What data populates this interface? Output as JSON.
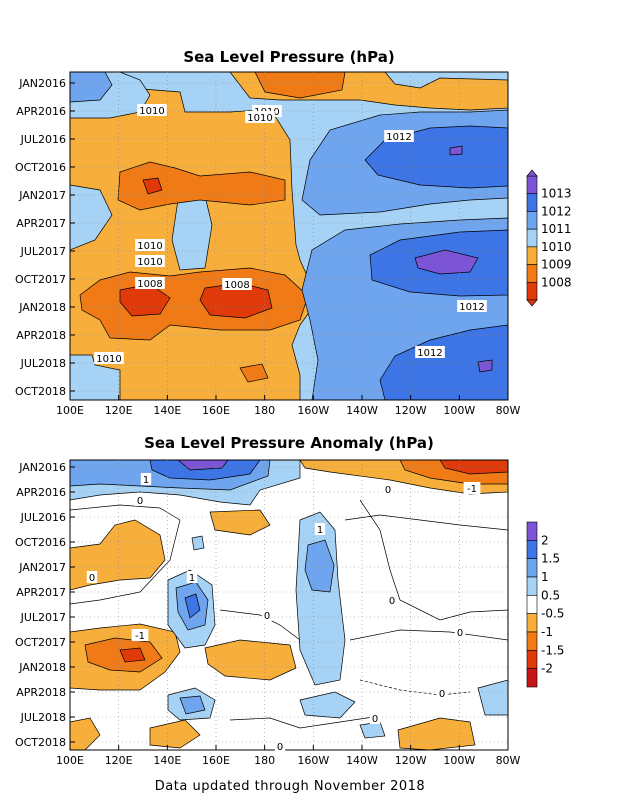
{
  "chart_data": [
    {
      "type": "heatmap",
      "title": "Sea Level Pressure (hPa)",
      "x_ticks": [
        "100E",
        "120E",
        "140E",
        "160E",
        "180",
        "160W",
        "140W",
        "120W",
        "100W",
        "80W"
      ],
      "y_ticks": [
        "JAN2016",
        "APR2016",
        "JUL2016",
        "OCT2016",
        "JAN2017",
        "APR2017",
        "JUL2017",
        "OCT2017",
        "JAN2018",
        "APR2018",
        "JUL2018",
        "OCT2018"
      ],
      "colorbar": {
        "labels": [
          "1013",
          "1012",
          "1011",
          "1010",
          "1009",
          "1008"
        ],
        "colors": [
          "#7b55d6",
          "#3d74e6",
          "#6fa5ee",
          "#a6d2f5",
          "#f7ae3a",
          "#f07b16",
          "#e03a0a"
        ]
      },
      "contour_labels": [
        "1010",
        "1010",
        "1010",
        "1012",
        "1010",
        "1010",
        "1008",
        "1008",
        "1012",
        "1010",
        "1012"
      ],
      "grid": true
    },
    {
      "type": "heatmap",
      "title": "Sea Level Pressure Anomaly (hPa)",
      "x_ticks": [
        "100E",
        "120E",
        "140E",
        "160E",
        "180",
        "160W",
        "140W",
        "120W",
        "100W",
        "80W"
      ],
      "y_ticks": [
        "JAN2016",
        "APR2016",
        "JUL2016",
        "OCT2016",
        "JAN2017",
        "APR2017",
        "JUL2017",
        "OCT2017",
        "JAN2018",
        "APR2018",
        "JUL2018",
        "OCT2018"
      ],
      "colorbar": {
        "labels": [
          "2",
          "1.5",
          "1",
          "0.5",
          "-0.5",
          "-1",
          "-1.5",
          "-2"
        ],
        "colors": [
          "#7b55d6",
          "#3d74e6",
          "#6fa5ee",
          "#a6d2f5",
          "#ffffff",
          "#f7ae3a",
          "#f07b16",
          "#e03a0a",
          "#c81414"
        ]
      },
      "contour_labels": [
        "1",
        "-1",
        "1",
        "1",
        "0",
        "0",
        "0",
        "0",
        "-1",
        "0",
        "0",
        "0",
        "0",
        "0"
      ],
      "grid": true
    }
  ],
  "footer": "Data updated through November 2018"
}
